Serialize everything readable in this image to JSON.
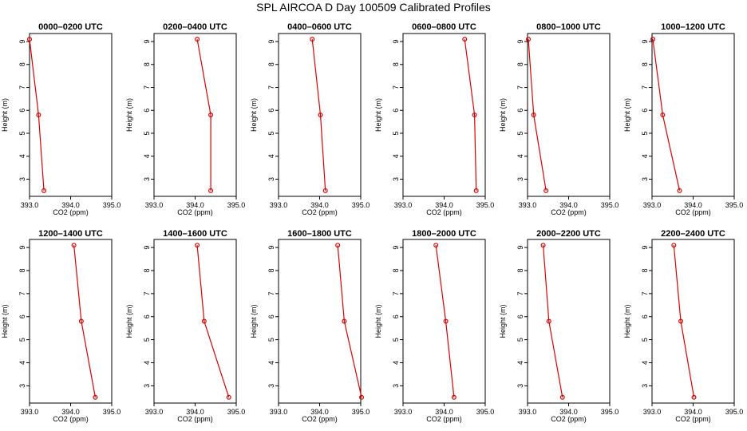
{
  "title": "SPL AIRCOA D  Day 100509  Calibrated Profiles",
  "colors": {
    "series": "#dd0000",
    "axis": "#000000"
  },
  "chart_data": [
    {
      "type": "line",
      "title": "0000–0200 UTC",
      "xlabel": "CO2 (ppm)",
      "ylabel": "Height (m)",
      "x": [
        393.0,
        393.22,
        393.35
      ],
      "y": [
        9.1,
        5.8,
        2.5
      ],
      "xlim": [
        393.0,
        395.0
      ],
      "ylim": [
        2.5,
        9.1
      ],
      "xticks": [
        "393.0",
        "394.0",
        "395.0"
      ],
      "yticks": [
        "3",
        "4",
        "5",
        "6",
        "7",
        "8",
        "9"
      ]
    },
    {
      "type": "line",
      "title": "0200–0400 UTC",
      "xlabel": "CO2 (ppm)",
      "ylabel": "Height (m)",
      "x": [
        394.05,
        394.38,
        394.38
      ],
      "y": [
        9.1,
        5.8,
        2.5
      ],
      "xlim": [
        393.0,
        395.0
      ],
      "ylim": [
        2.5,
        9.1
      ],
      "xticks": [
        "393.0",
        "394.0",
        "395.0"
      ],
      "yticks": [
        "3",
        "4",
        "5",
        "6",
        "7",
        "8",
        "9"
      ]
    },
    {
      "type": "line",
      "title": "0400–0600 UTC",
      "xlabel": "CO2 (ppm)",
      "ylabel": "Height (m)",
      "x": [
        393.82,
        394.02,
        394.14
      ],
      "y": [
        9.1,
        5.8,
        2.5
      ],
      "xlim": [
        393.0,
        395.0
      ],
      "ylim": [
        2.5,
        9.1
      ],
      "xticks": [
        "393.0",
        "394.0",
        "395.0"
      ],
      "yticks": [
        "3",
        "4",
        "5",
        "6",
        "7",
        "8",
        "9"
      ]
    },
    {
      "type": "line",
      "title": "0600–0800 UTC",
      "xlabel": "CO2 (ppm)",
      "ylabel": "Height (m)",
      "x": [
        394.5,
        394.74,
        394.78
      ],
      "y": [
        9.1,
        5.8,
        2.5
      ],
      "xlim": [
        393.0,
        395.0
      ],
      "ylim": [
        2.5,
        9.1
      ],
      "xticks": [
        "393.0",
        "394.0",
        "395.0"
      ],
      "yticks": [
        "3",
        "4",
        "5",
        "6",
        "7",
        "8",
        "9"
      ]
    },
    {
      "type": "line",
      "title": "0800–1000 UTC",
      "xlabel": "CO2 (ppm)",
      "ylabel": "Height (m)",
      "x": [
        393.02,
        393.15,
        393.45
      ],
      "y": [
        9.1,
        5.8,
        2.5
      ],
      "xlim": [
        393.0,
        395.0
      ],
      "ylim": [
        2.5,
        9.1
      ],
      "xticks": [
        "393.0",
        "394.0",
        "395.0"
      ],
      "yticks": [
        "3",
        "4",
        "5",
        "6",
        "7",
        "8",
        "9"
      ]
    },
    {
      "type": "line",
      "title": "1000–1200 UTC",
      "xlabel": "CO2 (ppm)",
      "ylabel": "Height (m)",
      "x": [
        393.02,
        393.26,
        393.67
      ],
      "y": [
        9.1,
        5.8,
        2.5
      ],
      "xlim": [
        393.0,
        395.0
      ],
      "ylim": [
        2.5,
        9.1
      ],
      "xticks": [
        "393.0",
        "394.0",
        "395.0"
      ],
      "yticks": [
        "3",
        "4",
        "5",
        "6",
        "7",
        "8",
        "9"
      ]
    },
    {
      "type": "line",
      "title": "1200–1400 UTC",
      "xlabel": "CO2 (ppm)",
      "ylabel": "Height (m)",
      "x": [
        394.08,
        394.26,
        394.6
      ],
      "y": [
        9.1,
        5.8,
        2.5
      ],
      "xlim": [
        393.0,
        395.0
      ],
      "ylim": [
        2.5,
        9.1
      ],
      "xticks": [
        "393.0",
        "394.0",
        "395.0"
      ],
      "yticks": [
        "3",
        "4",
        "5",
        "6",
        "7",
        "8",
        "9"
      ]
    },
    {
      "type": "line",
      "title": "1400–1600 UTC",
      "xlabel": "CO2 (ppm)",
      "ylabel": "Height (m)",
      "x": [
        394.05,
        394.22,
        394.82
      ],
      "y": [
        9.1,
        5.8,
        2.5
      ],
      "xlim": [
        393.0,
        395.0
      ],
      "ylim": [
        2.5,
        9.1
      ],
      "xticks": [
        "393.0",
        "394.0",
        "395.0"
      ],
      "yticks": [
        "3",
        "4",
        "5",
        "6",
        "7",
        "8",
        "9"
      ]
    },
    {
      "type": "line",
      "title": "1600–1800 UTC",
      "xlabel": "CO2 (ppm)",
      "ylabel": "Height (m)",
      "x": [
        394.44,
        394.6,
        395.02
      ],
      "y": [
        9.1,
        5.8,
        2.5
      ],
      "xlim": [
        393.0,
        395.0
      ],
      "ylim": [
        2.5,
        9.1
      ],
      "xticks": [
        "393.0",
        "394.0",
        "395.0"
      ],
      "yticks": [
        "3",
        "4",
        "5",
        "6",
        "7",
        "8",
        "9"
      ]
    },
    {
      "type": "line",
      "title": "1800–2000 UTC",
      "xlabel": "CO2 (ppm)",
      "ylabel": "Height (m)",
      "x": [
        393.8,
        394.04,
        394.24
      ],
      "y": [
        9.1,
        5.8,
        2.5
      ],
      "xlim": [
        393.0,
        395.0
      ],
      "ylim": [
        2.5,
        9.1
      ],
      "xticks": [
        "393.0",
        "394.0",
        "395.0"
      ],
      "yticks": [
        "3",
        "4",
        "5",
        "6",
        "7",
        "8",
        "9"
      ]
    },
    {
      "type": "line",
      "title": "2000–2200 UTC",
      "xlabel": "CO2 (ppm)",
      "ylabel": "Height (m)",
      "x": [
        393.38,
        393.52,
        393.85
      ],
      "y": [
        9.1,
        5.8,
        2.5
      ],
      "xlim": [
        393.0,
        395.0
      ],
      "ylim": [
        2.5,
        9.1
      ],
      "xticks": [
        "393.0",
        "394.0",
        "395.0"
      ],
      "yticks": [
        "3",
        "4",
        "5",
        "6",
        "7",
        "8",
        "9"
      ]
    },
    {
      "type": "line",
      "title": "2200–2400 UTC",
      "xlabel": "CO2 (ppm)",
      "ylabel": "Height (m)",
      "x": [
        393.53,
        393.7,
        394.02
      ],
      "y": [
        9.1,
        5.8,
        2.5
      ],
      "xlim": [
        393.0,
        395.0
      ],
      "ylim": [
        2.5,
        9.1
      ],
      "xticks": [
        "393.0",
        "394.0",
        "395.0"
      ],
      "yticks": [
        "3",
        "4",
        "5",
        "6",
        "7",
        "8",
        "9"
      ]
    }
  ]
}
